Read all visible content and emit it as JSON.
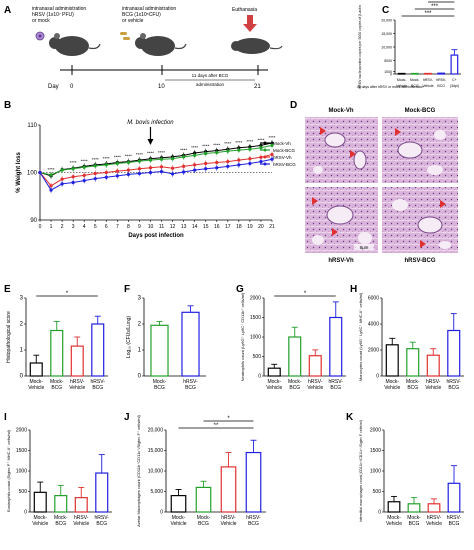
{
  "panels": {
    "A": {
      "label": "A",
      "ann1": [
        "intranasal administration",
        "hRSV (1x10⁷ PFU)",
        "or mock"
      ],
      "ann2": [
        "intranasal administration",
        "BCG (1x10⁵CFU)",
        "or vehicle"
      ],
      "ann3": "Euthanasia",
      "day_label": "Day",
      "days": [
        "0",
        "10",
        "21"
      ],
      "interval": [
        "11 days after BCG",
        "administration"
      ]
    },
    "B": {
      "label": "B"
    },
    "C": {
      "label": "C"
    },
    "D": {
      "label": "D",
      "titles": [
        "Mock-Vh",
        "Mock-BCG",
        "hRSV-Vh",
        "hRSV-BCG"
      ],
      "scale": "5μm"
    },
    "E": {
      "label": "E"
    },
    "F": {
      "label": "F"
    },
    "G": {
      "label": "G"
    },
    "H": {
      "label": "H"
    },
    "I": {
      "label": "I"
    },
    "J": {
      "label": "J"
    },
    "K": {
      "label": "K"
    }
  },
  "colors": {
    "mock_vehicle": "#000000",
    "mock_bcg": "#22a02a",
    "hrsv_vehicle": "#e03030",
    "hrsv_bcg": "#2020e0",
    "positive": "#2020e0",
    "histology": "#b47ab4"
  },
  "chart_data": [
    {
      "panel": "B",
      "type": "line",
      "xlabel": "Days post infection",
      "ylabel": "% Weight loss",
      "x": [
        0,
        1,
        2,
        3,
        4,
        5,
        6,
        7,
        8,
        9,
        10,
        11,
        12,
        13,
        14,
        15,
        16,
        17,
        18,
        19,
        20,
        21
      ],
      "xlim": [
        0,
        21
      ],
      "ylim": [
        90,
        110
      ],
      "yticks": [
        90,
        100,
        110
      ],
      "reference_y": 100,
      "annotation": "M. bovis infection",
      "annotation_x": 10,
      "sig_x": [
        1,
        3,
        4,
        5,
        6,
        7,
        8,
        9,
        10,
        11,
        13,
        14,
        15,
        16,
        17,
        18,
        19,
        20,
        21
      ],
      "sig_label": "****",
      "series": [
        {
          "name": "Mock-Vh",
          "color": "#000000",
          "values": [
            100,
            99.3,
            100.6,
            100.9,
            101.3,
            101.6,
            101.8,
            102.1,
            102.3,
            102.6,
            102.9,
            103.1,
            103.3,
            103.6,
            104.1,
            104.4,
            104.6,
            104.9,
            105.2,
            105.4,
            105.7,
            106.2
          ]
        },
        {
          "name": "Mock-BCG",
          "color": "#22a02a",
          "values": [
            100,
            99.5,
            100.5,
            100.8,
            101.1,
            101.4,
            101.6,
            101.9,
            102.1,
            102.4,
            102.6,
            102.8,
            102.9,
            103.3,
            103.6,
            104.0,
            104.2,
            104.5,
            104.7,
            104.9,
            105.2,
            105.7
          ]
        },
        {
          "name": "hRSV-Vh",
          "color": "#e03030",
          "values": [
            100,
            97.2,
            98.6,
            99.1,
            99.4,
            99.8,
            100.0,
            100.3,
            100.5,
            100.8,
            101.0,
            101.2,
            100.9,
            101.3,
            101.6,
            101.9,
            102.1,
            102.3,
            102.6,
            102.9,
            103.2,
            103.8
          ]
        },
        {
          "name": "hRSV-BCG",
          "color": "#2020e0",
          "values": [
            100,
            96.3,
            97.6,
            97.9,
            98.3,
            98.7,
            99.0,
            99.3,
            99.6,
            99.8,
            100.0,
            100.2,
            99.7,
            100.1,
            100.5,
            100.8,
            101.0,
            101.3,
            101.6,
            101.9,
            102.3,
            102.8
          ]
        }
      ]
    },
    {
      "panel": "C",
      "type": "bar",
      "ylabel": "hRSV nucleoprotein copies per 5000 copies of β-actin",
      "note": "42 days after hRSV or mock administration",
      "categories": [
        "Mock-Vehicle",
        "Mock-BCG",
        "hRSV-Vehicle",
        "hRSV-BCG",
        "C+ (3dpi)"
      ],
      "values": [
        200,
        200,
        200,
        300,
        7000
      ],
      "error": [
        0,
        0,
        0,
        0,
        2000
      ],
      "colors": [
        "#000000",
        "#22a02a",
        "#e03030",
        "#2020e0",
        "#2020e0"
      ],
      "yticks": [
        0,
        1000,
        5000,
        10000,
        15000,
        20000
      ],
      "ylim": [
        0,
        20000
      ],
      "sig": [
        {
          "from": 0,
          "to": 4,
          "label": "***"
        },
        {
          "from": 1,
          "to": 4,
          "label": "***"
        },
        {
          "from": 2,
          "to": 4,
          "label": "***"
        },
        {
          "from": 3,
          "to": 4,
          "label": "***"
        }
      ]
    },
    {
      "panel": "E",
      "type": "bar",
      "ylabel": "Histopathological score",
      "categories": [
        "Mock-Vehicle",
        "Mock-BCG",
        "hRSV-Vehicle",
        "hRSV-BCG"
      ],
      "values": [
        0.5,
        1.75,
        1.15,
        2.0
      ],
      "error": [
        0.3,
        0.35,
        0.35,
        0.3
      ],
      "colors": [
        "#000000",
        "#22a02a",
        "#e03030",
        "#2020e0"
      ],
      "ylim": [
        0,
        3
      ],
      "yticks": [
        0,
        1,
        2,
        3
      ],
      "sig": [
        {
          "from": 0,
          "to": 3,
          "label": "*"
        }
      ]
    },
    {
      "panel": "F",
      "type": "bar",
      "ylabel": "Log₁₀ (CFUs/Lung)",
      "categories": [
        "Mock-BCG",
        "hRSV-BCG"
      ],
      "values": [
        1.95,
        2.45
      ],
      "error": [
        0.15,
        0.25
      ],
      "colors": [
        "#22a02a",
        "#2020e0"
      ],
      "ylim": [
        0,
        3
      ],
      "yticks": [
        0,
        1,
        2,
        3
      ]
    },
    {
      "panel": "G",
      "type": "bar",
      "ylabel": "Neutrophils count (Ly6G⁺ Ly6C⁺ CD11b⁺ cells/ml)",
      "categories": [
        "Mock-Vehicle",
        "Mock-BCG",
        "hRSV-Vehicle",
        "hRSV-BCG"
      ],
      "values": [
        200,
        1000,
        520,
        1500
      ],
      "error": [
        100,
        250,
        150,
        400
      ],
      "colors": [
        "#000000",
        "#22a02a",
        "#e03030",
        "#2020e0"
      ],
      "ylim": [
        0,
        2000
      ],
      "yticks": [
        0,
        500,
        1000,
        1500,
        2000
      ],
      "sig": [
        {
          "from": 0,
          "to": 3,
          "label": "*"
        }
      ]
    },
    {
      "panel": "H",
      "type": "bar",
      "ylabel": "Monocytes count (Ly6G⁻ Ly6C⁺ MHC-II⁻ cells/ml)",
      "categories": [
        "Mock-Vehicle",
        "Mock-BCG",
        "hRSV-Vehicle",
        "hRSV-BCG"
      ],
      "values": [
        2400,
        2100,
        1600,
        3500
      ],
      "error": [
        500,
        500,
        500,
        1300
      ],
      "colors": [
        "#000000",
        "#22a02a",
        "#e03030",
        "#2020e0"
      ],
      "ylim": [
        0,
        6000
      ],
      "yticks": [
        0,
        2000,
        4000,
        6000
      ]
    },
    {
      "panel": "I",
      "type": "bar",
      "ylabel": "Eosinophils count (Siglec F⁺ MHC-II⁻ cells/ml)",
      "categories": [
        "Mock-Vehicle",
        "Mock-BCG",
        "hRSV-Vehicle",
        "hRSV-BCG"
      ],
      "values": [
        480,
        400,
        350,
        950
      ],
      "error": [
        250,
        250,
        250,
        450
      ],
      "colors": [
        "#000000",
        "#22a02a",
        "#e03030",
        "#2020e0"
      ],
      "ylim": [
        0,
        2000
      ],
      "yticks": [
        0,
        500,
        1000,
        1500,
        2000
      ]
    },
    {
      "panel": "J",
      "type": "bar",
      "ylabel": "Avelar Macrophages count (CD11b⁺CD11c⁺/Siglec F⁺ cells/ml)",
      "categories": [
        "Mock-Vehicle",
        "Mock-BCG",
        "hRSV-Vehicle",
        "hRSV-BCG"
      ],
      "values": [
        4000,
        6000,
        11000,
        14500
      ],
      "error": [
        1500,
        1500,
        3500,
        3000
      ],
      "colors": [
        "#000000",
        "#22a02a",
        "#e03030",
        "#2020e0"
      ],
      "ylim": [
        0,
        20000
      ],
      "yticks": [
        0,
        5000,
        10000,
        15000,
        20000
      ],
      "ytick_labels": [
        "0",
        "5,000",
        "10,000",
        "15,000",
        "20,000"
      ],
      "sig": [
        {
          "from": 0,
          "to": 3,
          "label": "**"
        },
        {
          "from": 1,
          "to": 3,
          "label": "*"
        }
      ]
    },
    {
      "panel": "K",
      "type": "bar",
      "ylabel": "Interstitial macrophages count (CD11b⁺/CD11c⁺/Siglec F cells/ml)",
      "categories": [
        "Mock-Vehicle",
        "Mock-BCG",
        "hRSV-Vehicle",
        "hRSV-BCG"
      ],
      "values": [
        250,
        200,
        200,
        700
      ],
      "error": [
        130,
        150,
        120,
        430
      ],
      "colors": [
        "#000000",
        "#22a02a",
        "#e03030",
        "#2020e0"
      ],
      "ylim": [
        0,
        2000
      ],
      "yticks": [
        0,
        500,
        1000,
        1500,
        2000
      ]
    }
  ]
}
